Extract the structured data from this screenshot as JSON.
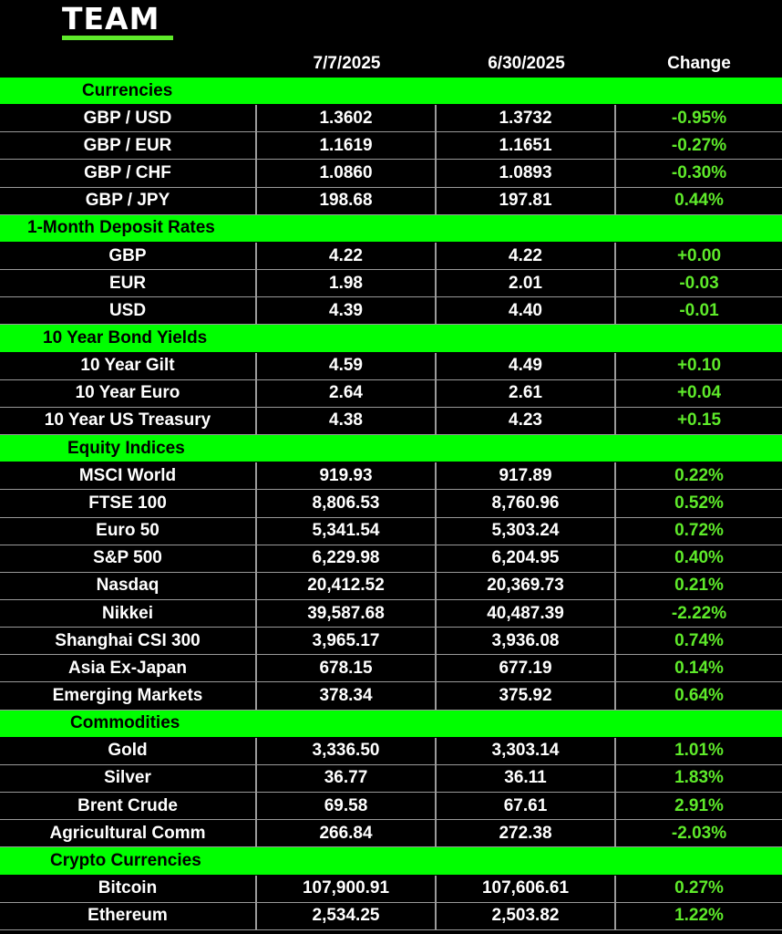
{
  "logo": {
    "text": "TEAM"
  },
  "colors": {
    "background": "#000000",
    "section": "#00ff00",
    "change": "#5eea2a",
    "text": "#ffffff"
  },
  "header": {
    "col1": "7/7/2025",
    "col2": "6/30/2025",
    "col3": "Change"
  },
  "sections": [
    {
      "title": "Currencies",
      "indent": 90,
      "rows": [
        {
          "name": "GBP / USD",
          "v1": "1.3602",
          "v2": "1.3732",
          "chg": "-0.95%"
        },
        {
          "name": "GBP / EUR",
          "v1": "1.1619",
          "v2": "1.1651",
          "chg": "-0.27%"
        },
        {
          "name": "GBP / CHF",
          "v1": "1.0860",
          "v2": "1.0893",
          "chg": "-0.30%"
        },
        {
          "name": "GBP / JPY",
          "v1": "198.68",
          "v2": "197.81",
          "chg": "0.44%"
        }
      ]
    },
    {
      "title": "1-Month Deposit Rates",
      "indent": 30,
      "rows": [
        {
          "name": "GBP",
          "v1": "4.22",
          "v2": "4.22",
          "chg": "+0.00"
        },
        {
          "name": "EUR",
          "v1": "1.98",
          "v2": "2.01",
          "chg": "-0.03"
        },
        {
          "name": "USD",
          "v1": "4.39",
          "v2": "4.40",
          "chg": "-0.01"
        }
      ]
    },
    {
      "title": "10 Year Bond Yields",
      "indent": 47,
      "rows": [
        {
          "name": "10 Year Gilt",
          "v1": "4.59",
          "v2": "4.49",
          "chg": "+0.10"
        },
        {
          "name": "10 Year Euro",
          "v1": "2.64",
          "v2": "2.61",
          "chg": "+0.04"
        },
        {
          "name": "10 Year US Treasury",
          "v1": "4.38",
          "v2": "4.23",
          "chg": "+0.15"
        }
      ]
    },
    {
      "title": "Equity Indices",
      "indent": 74,
      "rows": [
        {
          "name": "MSCI World",
          "v1": "919.93",
          "v2": "917.89",
          "chg": "0.22%"
        },
        {
          "name": "FTSE 100",
          "v1": "8,806.53",
          "v2": "8,760.96",
          "chg": "0.52%"
        },
        {
          "name": "Euro 50",
          "v1": "5,341.54",
          "v2": "5,303.24",
          "chg": "0.72%"
        },
        {
          "name": "S&P 500",
          "v1": "6,229.98",
          "v2": "6,204.95",
          "chg": "0.40%"
        },
        {
          "name": "Nasdaq",
          "v1": "20,412.52",
          "v2": "20,369.73",
          "chg": "0.21%"
        },
        {
          "name": "Nikkei",
          "v1": "39,587.68",
          "v2": "40,487.39",
          "chg": "-2.22%"
        },
        {
          "name": "Shanghai CSI 300",
          "v1": "3,965.17",
          "v2": "3,936.08",
          "chg": "0.74%"
        },
        {
          "name": "Asia Ex-Japan",
          "v1": "678.15",
          "v2": "677.19",
          "chg": "0.14%"
        },
        {
          "name": "Emerging Markets",
          "v1": "378.34",
          "v2": "375.92",
          "chg": "0.64%"
        }
      ]
    },
    {
      "title": "Commodities",
      "indent": 77,
      "rows": [
        {
          "name": "Gold",
          "v1": "3,336.50",
          "v2": "3,303.14",
          "chg": "1.01%"
        },
        {
          "name": "Silver",
          "v1": "36.77",
          "v2": "36.11",
          "chg": "1.83%"
        },
        {
          "name": "Brent Crude",
          "v1": "69.58",
          "v2": "67.61",
          "chg": "2.91%"
        },
        {
          "name": "Agricultural Comm",
          "v1": "266.84",
          "v2": "272.38",
          "chg": "-2.03%"
        }
      ]
    },
    {
      "title": "Crypto Currencies",
      "indent": 55,
      "rows": [
        {
          "name": "Bitcoin",
          "v1": "107,900.91",
          "v2": "107,606.61",
          "chg": "0.27%"
        },
        {
          "name": "Ethereum",
          "v1": "2,534.25",
          "v2": "2,503.82",
          "chg": "1.22%"
        }
      ]
    }
  ]
}
